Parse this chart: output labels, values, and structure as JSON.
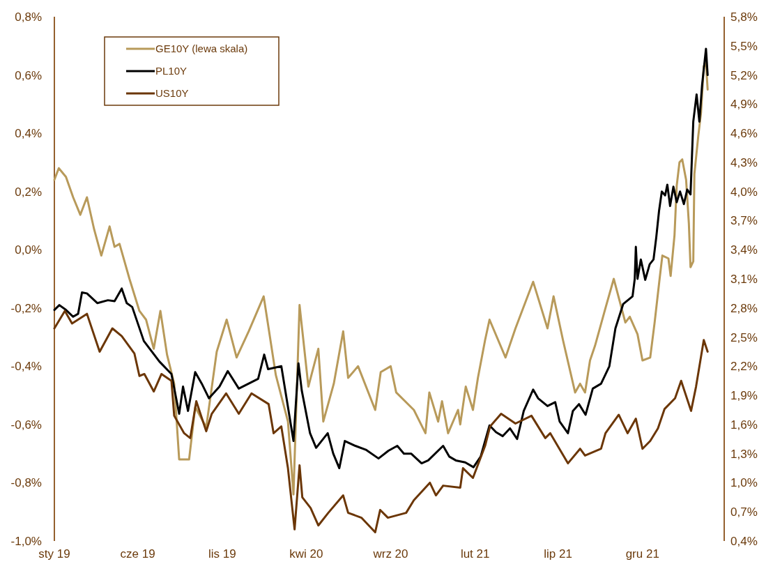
{
  "chart_data": {
    "type": "line",
    "legend": "top left",
    "grid": false,
    "line_style": "solid",
    "marker": "none",
    "xlim": [
      "2019-01-01",
      "2022-04-28"
    ],
    "xticks": [
      {
        "value": "2019-01-01",
        "label": "sty 19"
      },
      {
        "value": "2019-06-01",
        "label": "cze 19"
      },
      {
        "value": "2019-11-01",
        "label": "lis 19"
      },
      {
        "value": "2020-04-01",
        "label": "kwi 20"
      },
      {
        "value": "2020-09-01",
        "label": "wrz 20"
      },
      {
        "value": "2021-02-01",
        "label": "lut 21"
      },
      {
        "value": "2021-07-01",
        "label": "lip 21"
      },
      {
        "value": "2021-12-01",
        "label": "gru 21"
      }
    ],
    "ylim": [
      -1.0,
      0.8
    ],
    "yticks": [
      {
        "value": -1.0,
        "label": "-1,0%"
      },
      {
        "value": -0.8,
        "label": "-0,8%"
      },
      {
        "value": -0.6,
        "label": "-0,6%"
      },
      {
        "value": -0.4,
        "label": "-0,4%"
      },
      {
        "value": -0.2,
        "label": "-0,2%"
      },
      {
        "value": 0,
        "label": "0,0%"
      },
      {
        "value": 0.2,
        "label": "0,2%"
      },
      {
        "value": 0.4,
        "label": "0,4%"
      },
      {
        "value": 0.6,
        "label": "0,6%"
      },
      {
        "value": 0.8,
        "label": "0,8%"
      }
    ],
    "y2lim": [
      0.4,
      5.8
    ],
    "y2ticks": [
      {
        "value": 0.4,
        "label": "0,4%"
      },
      {
        "value": 0.7,
        "label": "0,7%"
      },
      {
        "value": 1.0,
        "label": "1,0%"
      },
      {
        "value": 1.3,
        "label": "1,3%"
      },
      {
        "value": 1.6,
        "label": "1,6%"
      },
      {
        "value": 1.9,
        "label": "1,9%"
      },
      {
        "value": 2.2,
        "label": "2,2%"
      },
      {
        "value": 2.5,
        "label": "2,5%"
      },
      {
        "value": 2.8,
        "label": "2,8%"
      },
      {
        "value": 3.1,
        "label": "3,1%"
      },
      {
        "value": 3.4,
        "label": "3,4%"
      },
      {
        "value": 3.7,
        "label": "3,7%"
      },
      {
        "value": 4.0,
        "label": "4,0%"
      },
      {
        "value": 4.3,
        "label": "4,3%"
      },
      {
        "value": 4.6,
        "label": "4,6%"
      },
      {
        "value": 4.9,
        "label": "4,9%"
      },
      {
        "value": 5.2,
        "label": "5,2%"
      },
      {
        "value": 5.5,
        "label": "5,5%"
      },
      {
        "value": 5.8,
        "label": "5,8%"
      }
    ],
    "series": [
      {
        "name": "GE10Y (lewa skala)",
        "color": "#b89a5a",
        "axis": "y",
        "x": [
          "2019-01-01",
          "2019-01-09",
          "2019-01-22",
          "2019-02-04",
          "2019-02-17",
          "2019-03-01",
          "2019-03-14",
          "2019-03-27",
          "2019-04-11",
          "2019-04-20",
          "2019-04-29",
          "2019-05-17",
          "2019-06-04",
          "2019-06-16",
          "2019-06-30",
          "2019-07-12",
          "2019-07-24",
          "2019-08-06",
          "2019-08-15",
          "2019-09-02",
          "2019-09-13",
          "2019-10-03",
          "2019-10-22",
          "2019-11-09",
          "2019-11-27",
          "2019-12-19",
          "2020-01-15",
          "2020-01-24",
          "2020-02-06",
          "2020-02-28",
          "2020-03-09",
          "2020-03-20",
          "2020-04-05",
          "2020-04-23",
          "2020-05-02",
          "2020-05-21",
          "2020-06-07",
          "2020-06-16",
          "2020-07-04",
          "2020-08-04",
          "2020-08-14",
          "2020-09-01",
          "2020-09-11",
          "2020-10-13",
          "2020-11-03",
          "2020-11-10",
          "2020-11-26",
          "2020-12-03",
          "2020-12-14",
          "2021-01-01",
          "2021-01-05",
          "2021-01-15",
          "2021-01-28",
          "2021-02-06",
          "2021-02-19",
          "2021-02-27",
          "2021-03-28",
          "2021-04-15",
          "2021-04-29",
          "2021-05-17",
          "2021-06-12",
          "2021-06-23",
          "2021-07-10",
          "2021-08-01",
          "2021-08-10",
          "2021-08-19",
          "2021-08-28",
          "2021-09-06",
          "2021-09-25",
          "2021-10-10",
          "2021-10-31",
          "2021-11-08",
          "2021-11-22",
          "2021-12-01",
          "2021-12-15",
          "2021-12-23",
          "2022-01-01",
          "2022-01-06",
          "2022-01-17",
          "2022-01-21",
          "2022-01-28",
          "2022-02-01",
          "2022-02-06",
          "2022-02-11",
          "2022-02-18",
          "2022-02-23",
          "2022-02-26",
          "2022-03-03",
          "2022-03-05",
          "2022-03-12",
          "2022-03-17",
          "2022-03-22",
          "2022-03-26",
          "2022-03-29"
        ],
        "values": [
          0.24,
          0.28,
          0.25,
          0.18,
          0.12,
          0.18,
          0.07,
          -0.02,
          0.08,
          0.01,
          0.02,
          -0.1,
          -0.21,
          -0.24,
          -0.34,
          -0.21,
          -0.36,
          -0.46,
          -0.72,
          -0.72,
          -0.54,
          -0.61,
          -0.35,
          -0.24,
          -0.37,
          -0.28,
          -0.16,
          -0.27,
          -0.43,
          -0.59,
          -0.84,
          -0.19,
          -0.47,
          -0.34,
          -0.59,
          -0.46,
          -0.28,
          -0.44,
          -0.4,
          -0.55,
          -0.42,
          -0.4,
          -0.49,
          -0.55,
          -0.63,
          -0.49,
          -0.59,
          -0.52,
          -0.63,
          -0.55,
          -0.6,
          -0.47,
          -0.55,
          -0.44,
          -0.31,
          -0.24,
          -0.37,
          -0.27,
          -0.2,
          -0.11,
          -0.27,
          -0.16,
          -0.31,
          -0.49,
          -0.46,
          -0.49,
          -0.38,
          -0.33,
          -0.2,
          -0.1,
          -0.25,
          -0.23,
          -0.29,
          -0.38,
          -0.37,
          -0.25,
          -0.1,
          -0.02,
          -0.03,
          -0.09,
          0.05,
          0.22,
          0.3,
          0.31,
          0.24,
          0.09,
          -0.06,
          -0.04,
          0.26,
          0.39,
          0.47,
          0.63,
          0.64,
          0.55
        ]
      },
      {
        "name": "PL10Y",
        "color": "#000000",
        "axis": "y2",
        "x": [
          "2019-01-01",
          "2019-01-10",
          "2019-01-22",
          "2019-02-04",
          "2019-02-13",
          "2019-02-20",
          "2019-03-01",
          "2019-03-20",
          "2019-04-08",
          "2019-04-20",
          "2019-05-03",
          "2019-05-12",
          "2019-05-22",
          "2019-06-12",
          "2019-07-10",
          "2019-08-01",
          "2019-08-15",
          "2019-08-22",
          "2019-08-31",
          "2019-09-13",
          "2019-09-25",
          "2019-10-08",
          "2019-10-27",
          "2019-11-11",
          "2019-12-01",
          "2020-01-05",
          "2020-01-16",
          "2020-01-23",
          "2020-02-16",
          "2020-03-09",
          "2020-03-18",
          "2020-03-24",
          "2020-04-08",
          "2020-04-19",
          "2020-05-10",
          "2020-05-20",
          "2020-05-31",
          "2020-06-10",
          "2020-06-29",
          "2020-07-18",
          "2020-08-10",
          "2020-08-28",
          "2020-09-13",
          "2020-09-25",
          "2020-10-08",
          "2020-10-27",
          "2020-11-08",
          "2020-12-05",
          "2020-12-16",
          "2020-12-28",
          "2021-01-14",
          "2021-01-29",
          "2021-02-11",
          "2021-02-27",
          "2021-03-11",
          "2021-03-23",
          "2021-04-05",
          "2021-04-18",
          "2021-04-30",
          "2021-05-17",
          "2021-05-26",
          "2021-06-12",
          "2021-06-26",
          "2021-07-04",
          "2021-07-19",
          "2021-07-28",
          "2021-08-08",
          "2021-08-20",
          "2021-09-02",
          "2021-09-17",
          "2021-10-02",
          "2021-10-13",
          "2021-10-27",
          "2021-11-13",
          "2021-11-17",
          "2021-11-19",
          "2021-11-22",
          "2021-11-28",
          "2021-12-06",
          "2021-12-14",
          "2021-12-21",
          "2021-12-26",
          "2021-12-31",
          "2022-01-05",
          "2022-01-11",
          "2022-01-15",
          "2022-01-20",
          "2022-01-26",
          "2022-02-01",
          "2022-02-07",
          "2022-02-14",
          "2022-02-20",
          "2022-02-26",
          "2022-03-03",
          "2022-03-09",
          "2022-03-14",
          "2022-03-19",
          "2022-03-26",
          "2022-03-29"
        ],
        "values": [
          2.78,
          2.83,
          2.78,
          2.71,
          2.74,
          2.96,
          2.95,
          2.85,
          2.88,
          2.87,
          3.0,
          2.85,
          2.81,
          2.46,
          2.25,
          2.12,
          1.71,
          1.99,
          1.74,
          2.14,
          2.02,
          1.87,
          1.99,
          2.15,
          1.97,
          2.07,
          2.32,
          2.17,
          2.2,
          1.43,
          2.23,
          1.95,
          1.51,
          1.36,
          1.51,
          1.3,
          1.15,
          1.43,
          1.38,
          1.34,
          1.25,
          1.33,
          1.38,
          1.3,
          1.3,
          1.2,
          1.23,
          1.38,
          1.27,
          1.23,
          1.21,
          1.16,
          1.27,
          1.59,
          1.52,
          1.48,
          1.56,
          1.45,
          1.74,
          1.96,
          1.87,
          1.79,
          1.83,
          1.63,
          1.51,
          1.74,
          1.81,
          1.7,
          1.97,
          2.02,
          2.2,
          2.59,
          2.84,
          2.92,
          3.1,
          3.43,
          3.1,
          3.3,
          3.09,
          3.25,
          3.3,
          3.53,
          3.8,
          4.0,
          3.96,
          4.07,
          3.85,
          4.05,
          3.89,
          4.0,
          3.87,
          4.02,
          3.97,
          4.72,
          5.0,
          4.72,
          5.1,
          5.47,
          5.2
        ]
      },
      {
        "name": "US10Y",
        "color": "#6b3606",
        "axis": "y2",
        "x": [
          "2019-01-01",
          "2019-01-20",
          "2019-02-02",
          "2019-03-01",
          "2019-03-24",
          "2019-04-16",
          "2019-05-03",
          "2019-05-26",
          "2019-06-04",
          "2019-06-13",
          "2019-06-30",
          "2019-07-14",
          "2019-08-01",
          "2019-08-06",
          "2019-08-24",
          "2019-09-04",
          "2019-09-15",
          "2019-10-03",
          "2019-10-13",
          "2019-11-08",
          "2019-12-01",
          "2019-12-24",
          "2020-01-24",
          "2020-02-02",
          "2020-02-16",
          "2020-02-28",
          "2020-03-11",
          "2020-03-20",
          "2020-03-25",
          "2020-04-09",
          "2020-04-23",
          "2020-05-11",
          "2020-06-07",
          "2020-06-16",
          "2020-07-10",
          "2020-08-04",
          "2020-08-13",
          "2020-08-27",
          "2020-09-29",
          "2020-10-13",
          "2020-11-11",
          "2020-11-22",
          "2020-12-05",
          "2021-01-05",
          "2021-01-10",
          "2021-01-28",
          "2021-02-19",
          "2021-02-28",
          "2021-03-20",
          "2021-04-15",
          "2021-05-14",
          "2021-06-08",
          "2021-06-17",
          "2021-07-19",
          "2021-08-10",
          "2021-08-19",
          "2021-09-17",
          "2021-09-25",
          "2021-10-19",
          "2021-11-04",
          "2021-11-19",
          "2021-12-01",
          "2021-12-15",
          "2021-12-29",
          "2022-01-10",
          "2022-01-29",
          "2022-02-09",
          "2022-02-27",
          "2022-03-08",
          "2022-03-22",
          "2022-03-29"
        ],
        "values": [
          2.59,
          2.77,
          2.64,
          2.74,
          2.35,
          2.59,
          2.51,
          2.33,
          2.1,
          2.12,
          1.94,
          2.12,
          2.05,
          1.69,
          1.51,
          1.46,
          1.84,
          1.53,
          1.71,
          1.92,
          1.71,
          1.92,
          1.81,
          1.51,
          1.58,
          1.15,
          0.52,
          1.18,
          0.85,
          0.74,
          0.56,
          0.69,
          0.87,
          0.69,
          0.64,
          0.49,
          0.72,
          0.64,
          0.69,
          0.82,
          1.0,
          0.87,
          0.97,
          0.95,
          1.15,
          1.05,
          1.38,
          1.58,
          1.71,
          1.61,
          1.69,
          1.46,
          1.51,
          1.2,
          1.35,
          1.28,
          1.35,
          1.51,
          1.7,
          1.51,
          1.66,
          1.35,
          1.43,
          1.56,
          1.76,
          1.87,
          2.05,
          1.74,
          1.99,
          2.47,
          2.35
        ]
      }
    ]
  }
}
